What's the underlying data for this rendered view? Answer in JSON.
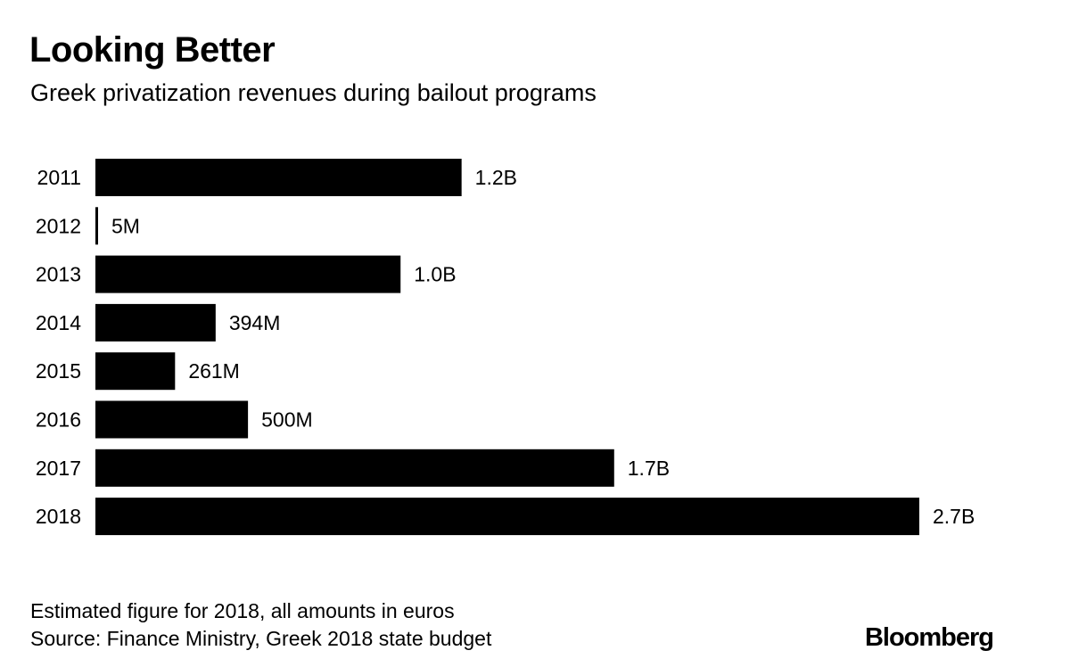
{
  "chart_data": {
    "type": "bar",
    "orientation": "horizontal",
    "title": "Looking Better",
    "subtitle": "Greek privatization revenues during bailout programs",
    "categories": [
      "2011",
      "2012",
      "2013",
      "2014",
      "2015",
      "2016",
      "2017",
      "2018"
    ],
    "values": [
      1.2,
      0.005,
      1.0,
      0.394,
      0.261,
      0.5,
      1.7,
      2.7
    ],
    "value_labels": [
      "1.2B",
      "5M",
      "1.0B",
      "394M",
      "261M",
      "500M",
      "1.7B",
      "2.7B"
    ],
    "unit": "billion euros",
    "xlim": [
      0,
      2.7
    ],
    "bar_color": "#000000",
    "grid": false,
    "legend": "none"
  },
  "footer": {
    "note": "Estimated figure for 2018, all amounts in euros",
    "source": "Source: Finance Ministry, Greek 2018 state budget",
    "logo": "Bloomberg"
  }
}
